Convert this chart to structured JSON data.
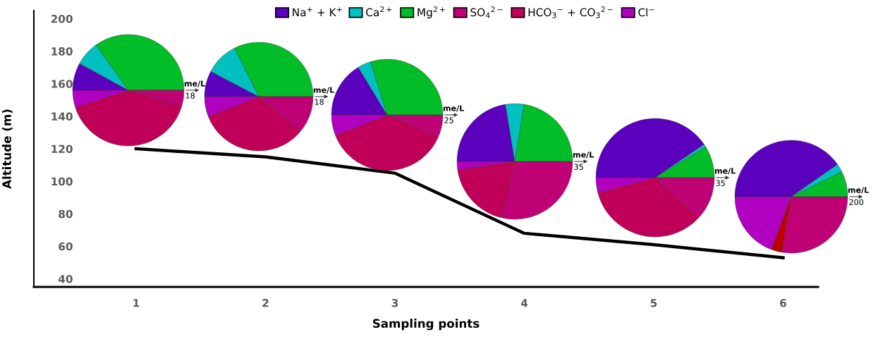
{
  "chart_data": [
    {
      "type": "line",
      "xlabel": "Sampling points",
      "ylabel": "Altitude (m)",
      "categories": [
        "1",
        "2",
        "3",
        "4",
        "5",
        "6"
      ],
      "series": [
        {
          "color": "#000000",
          "values": [
            120,
            115,
            105,
            68,
            61,
            53
          ]
        }
      ],
      "ylim": [
        35,
        205
      ],
      "yticks": [
        40,
        60,
        80,
        100,
        120,
        140,
        160,
        180,
        200
      ],
      "grid": false
    },
    {
      "type": "pie",
      "legend": "top",
      "categories": [
        "Na$^{+}$ + K$^{+}$",
        "Ca$^{2+}$",
        "Mg$^{2+}$",
        "SO$_{4}$$^{2−}$",
        "HCO$_{3}$$^{−}$ + CO$_{3}$$^{2−}$",
        "Cl$^{−}$"
      ],
      "values": [
        8.0,
        7.1,
        34.9,
        4.6,
        40.5,
        4.9
      ],
      "colors": [
        "#5b00bd",
        "#00c0c0",
        "#00bd28",
        "#c00075",
        "#c00058",
        "#b000c0"
      ],
      "annotations": [
        "me/L",
        "18"
      ]
    },
    {
      "type": "pie",
      "values": [
        7.7,
        9.9,
        32.4,
        11.1,
        33.0,
        5.9
      ],
      "colors": [
        "#5b00bd",
        "#00c0c0",
        "#00bd28",
        "#c00075",
        "#c00058",
        "#b000c0"
      ],
      "annotations": [
        "me/L",
        "18"
      ]
    },
    {
      "type": "pie",
      "values": [
        16.3,
        3.9,
        29.8,
        6.5,
        37.5,
        6.0
      ],
      "colors": [
        "#5b00bd",
        "#00c0c0",
        "#00bd28",
        "#c00075",
        "#c00058",
        "#b000c0"
      ],
      "annotations": [
        "me/L",
        "25"
      ]
    },
    {
      "type": "pie",
      "values": [
        22.4,
        5.2,
        22.4,
        28.7,
        19.0,
        2.3
      ],
      "colors": [
        "#5b00bd",
        "#00c0c0",
        "#00bd28",
        "#c00075",
        "#c00058",
        "#b000c0"
      ],
      "annotations": [
        "me/L",
        "35"
      ]
    },
    {
      "type": "pie",
      "values": [
        40.5,
        0.8,
        8.7,
        11.9,
        34.0,
        4.1
      ],
      "colors": [
        "#5b00bd",
        "#00c0c0",
        "#00bd28",
        "#c00075",
        "#c00058",
        "#b000c0"
      ],
      "annotations": [
        "me/L",
        "35"
      ]
    },
    {
      "type": "pie",
      "values": [
        40.3,
        2.4,
        7.3,
        27.7,
        3.1,
        19.2
      ],
      "colors": [
        "#5b00bd",
        "#00c0c0",
        "#00bd28",
        "#c00075",
        "#c00000",
        "#b000c0"
      ],
      "annotations": [
        "me/L",
        "200"
      ]
    }
  ]
}
